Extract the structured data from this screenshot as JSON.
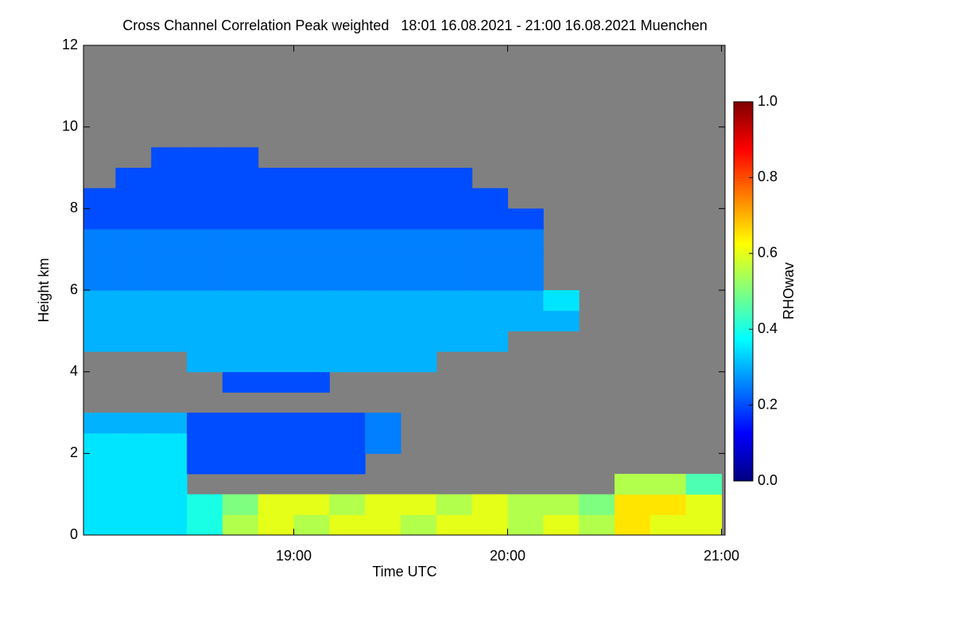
{
  "chart_data": {
    "type": "heatmap",
    "title": "Cross Channel Correlation Peak weighted   18:01 16.08.2021 - 21:00 16.08.2021 Muenchen",
    "x_label": "Time UTC",
    "y_label": "Height km",
    "colorbar_label": "RHOwav",
    "x": [
      1085,
      1095,
      1105,
      1115,
      1125,
      1135,
      1145,
      1155,
      1165,
      1175,
      1185,
      1195,
      1205,
      1215,
      1225,
      1235,
      1245,
      1255
    ],
    "y": [
      0.25,
      0.75,
      1.25,
      1.75,
      2.25,
      2.75,
      3.25,
      3.75,
      4.25,
      4.75,
      5.25,
      5.75,
      6.25,
      6.75,
      7.25,
      7.75,
      8.25,
      8.75,
      9.25,
      9.75,
      10.25,
      10.75,
      11.25,
      11.75
    ],
    "z": [
      [
        0.35,
        0.35,
        0.35,
        0.4,
        0.55,
        0.6,
        0.55,
        0.6,
        0.6,
        0.55,
        0.6,
        0.6,
        0.55,
        0.6,
        0.55,
        0.65,
        0.6,
        0.6
      ],
      [
        0.35,
        0.35,
        0.35,
        0.4,
        0.5,
        0.6,
        0.6,
        0.55,
        0.6,
        0.6,
        0.55,
        0.6,
        0.55,
        0.55,
        0.5,
        0.65,
        0.65,
        0.6
      ],
      [
        0.35,
        0.35,
        0.35,
        null,
        null,
        null,
        null,
        null,
        null,
        null,
        null,
        null,
        null,
        null,
        null,
        0.55,
        0.55,
        0.45
      ],
      [
        0.35,
        0.35,
        0.35,
        0.2,
        0.2,
        0.2,
        0.2,
        0.2,
        null,
        null,
        null,
        null,
        null,
        null,
        null,
        null,
        null,
        null
      ],
      [
        0.35,
        0.35,
        0.35,
        0.2,
        0.2,
        0.2,
        0.2,
        0.2,
        0.25,
        null,
        null,
        null,
        null,
        null,
        null,
        null,
        null,
        null
      ],
      [
        0.3,
        0.3,
        0.3,
        0.2,
        0.2,
        0.2,
        0.2,
        0.2,
        0.25,
        null,
        null,
        null,
        null,
        null,
        null,
        null,
        null,
        null
      ],
      [
        null,
        null,
        null,
        null,
        null,
        null,
        null,
        null,
        null,
        null,
        null,
        null,
        null,
        null,
        null,
        null,
        null,
        null
      ],
      [
        null,
        null,
        null,
        null,
        0.2,
        0.2,
        0.2,
        null,
        null,
        null,
        null,
        null,
        null,
        null,
        null,
        null,
        null,
        null
      ],
      [
        null,
        null,
        null,
        0.3,
        0.3,
        0.3,
        0.3,
        0.3,
        0.3,
        0.3,
        null,
        null,
        null,
        null,
        null,
        null,
        null,
        null
      ],
      [
        0.3,
        0.3,
        0.3,
        0.3,
        0.3,
        0.3,
        0.3,
        0.3,
        0.3,
        0.3,
        0.3,
        0.3,
        null,
        null,
        null,
        null,
        null,
        null
      ],
      [
        0.3,
        0.3,
        0.3,
        0.3,
        0.3,
        0.3,
        0.3,
        0.3,
        0.3,
        0.3,
        0.3,
        0.3,
        0.3,
        0.3,
        null,
        null,
        null,
        null
      ],
      [
        0.3,
        0.3,
        0.3,
        0.3,
        0.3,
        0.3,
        0.3,
        0.3,
        0.3,
        0.3,
        0.3,
        0.3,
        0.3,
        0.35,
        null,
        null,
        null,
        null
      ],
      [
        0.25,
        0.25,
        0.25,
        0.25,
        0.25,
        0.25,
        0.25,
        0.25,
        0.25,
        0.25,
        0.25,
        0.25,
        0.25,
        null,
        null,
        null,
        null,
        null
      ],
      [
        0.25,
        0.25,
        0.25,
        0.25,
        0.25,
        0.25,
        0.25,
        0.25,
        0.25,
        0.25,
        0.25,
        0.25,
        0.25,
        null,
        null,
        null,
        null,
        null
      ],
      [
        0.25,
        0.25,
        0.25,
        0.25,
        0.25,
        0.25,
        0.25,
        0.25,
        0.25,
        0.25,
        0.25,
        0.25,
        0.25,
        null,
        null,
        null,
        null,
        null
      ],
      [
        0.2,
        0.2,
        0.2,
        0.2,
        0.2,
        0.2,
        0.2,
        0.2,
        0.2,
        0.2,
        0.2,
        0.2,
        0.2,
        null,
        null,
        null,
        null,
        null
      ],
      [
        0.2,
        0.2,
        0.2,
        0.2,
        0.2,
        0.2,
        0.2,
        0.2,
        0.2,
        0.2,
        0.2,
        0.2,
        null,
        null,
        null,
        null,
        null,
        null
      ],
      [
        null,
        0.2,
        0.2,
        0.2,
        0.2,
        0.2,
        0.2,
        0.2,
        0.2,
        0.2,
        0.2,
        null,
        null,
        null,
        null,
        null,
        null,
        null
      ],
      [
        null,
        null,
        0.2,
        0.2,
        0.2,
        null,
        null,
        null,
        null,
        null,
        null,
        null,
        null,
        null,
        null,
        null,
        null,
        null
      ],
      [
        null,
        null,
        null,
        null,
        null,
        null,
        null,
        null,
        null,
        null,
        null,
        null,
        null,
        null,
        null,
        null,
        null,
        null
      ],
      [
        null,
        null,
        null,
        null,
        null,
        null,
        null,
        null,
        null,
        null,
        null,
        null,
        null,
        null,
        null,
        null,
        null,
        null
      ],
      [
        null,
        null,
        null,
        null,
        null,
        null,
        null,
        null,
        null,
        null,
        null,
        null,
        null,
        null,
        null,
        null,
        null,
        null
      ],
      [
        null,
        null,
        null,
        null,
        null,
        null,
        null,
        null,
        null,
        null,
        null,
        null,
        null,
        null,
        null,
        null,
        null,
        null
      ],
      [
        null,
        null,
        null,
        null,
        null,
        null,
        null,
        null,
        null,
        null,
        null,
        null,
        null,
        null,
        null,
        null,
        null,
        null
      ]
    ],
    "xlim": [
      1081,
      1261
    ],
    "xticks": [
      {
        "value": 1140,
        "label": "19:00"
      },
      {
        "value": 1200,
        "label": "20:00"
      },
      {
        "value": 1260,
        "label": "21:00"
      }
    ],
    "ylim": [
      0,
      12
    ],
    "yticks": [
      0,
      2,
      4,
      6,
      8,
      10,
      12
    ],
    "clim": [
      0,
      1
    ],
    "cticks": [
      {
        "value": 0,
        "label": "0.0"
      },
      {
        "value": 0.2,
        "label": "0.2"
      },
      {
        "value": 0.4,
        "label": "0.4"
      },
      {
        "value": 0.6,
        "label": "0.6"
      },
      {
        "value": 0.8,
        "label": "0.8"
      },
      {
        "value": 1,
        "label": "1.0"
      }
    ],
    "colorscale": [
      "#00007f",
      "#0000ff",
      "#007fff",
      "#00ffff",
      "#7fff7f",
      "#ffff00",
      "#ff7f00",
      "#ff0000",
      "#7f0000"
    ],
    "background": "#808080"
  }
}
